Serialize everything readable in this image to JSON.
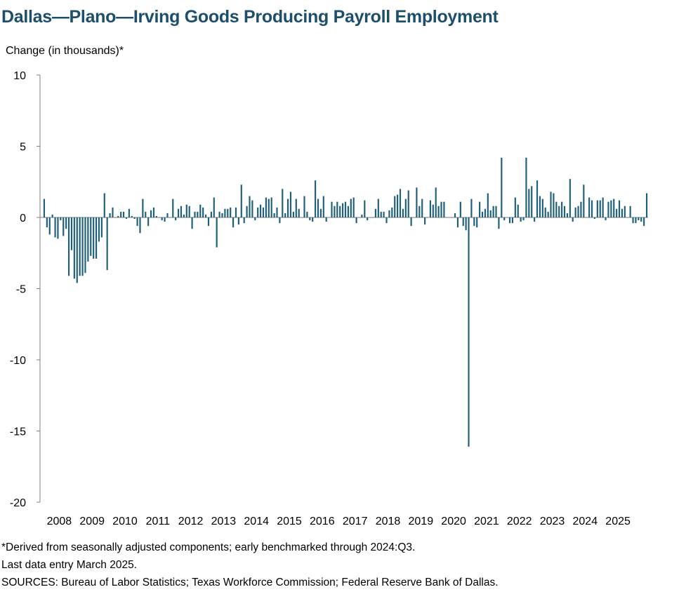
{
  "title": "Dallas—Plano—Irving Goods Producing Payroll Employment",
  "chart_data": {
    "type": "bar",
    "title": "Dallas—Plano—Irving Goods Producing Payroll Employment",
    "ylabel": "Change (in thousands)*",
    "xlabel": "",
    "ylim": [
      -20,
      10
    ],
    "yticks": [
      10,
      5,
      0,
      -5,
      -10,
      -15,
      -20
    ],
    "xtick_labels": [
      "2008",
      "2009",
      "2010",
      "2011",
      "2012",
      "2013",
      "2014",
      "2015",
      "2016",
      "2017",
      "2018",
      "2019",
      "2020",
      "2021",
      "2022",
      "2023",
      "2024",
      "2025"
    ],
    "frequency": "monthly",
    "start": "2008-01",
    "end": "2025-03",
    "bar_color": "#1d5f7a",
    "grid": false,
    "legend": "none",
    "series": [
      {
        "values": [
          1.3,
          -0.7,
          -1.2,
          0.2,
          -1.4,
          -1.5,
          -0.2,
          -1.3,
          -0.8,
          -4.1,
          -2.3,
          -4.3,
          -4.6,
          -4.1,
          -4.1,
          -3.9,
          -3.1,
          -2.7,
          -2.9,
          -2.9,
          -1.7,
          -1.4,
          1.7,
          -3.7,
          0.3,
          0.7,
          0.0,
          0.1,
          0.4,
          0.4,
          -0.1,
          0.6,
          0.1,
          -0.1,
          -0.6,
          -1.1,
          1.3,
          0.4,
          -0.6,
          0.5,
          0.7,
          0.1,
          0.0,
          -0.2,
          -0.3,
          0.3,
          0.0,
          1.3,
          -0.2,
          0.6,
          0.8,
          0.2,
          0.9,
          0.8,
          -0.8,
          0.4,
          0.4,
          0.9,
          0.7,
          0.2,
          -0.6,
          0.4,
          1.4,
          -2.1,
          0.4,
          0.3,
          0.6,
          0.6,
          0.7,
          -0.7,
          0.7,
          -0.5,
          2.3,
          -0.4,
          0.8,
          1.5,
          1.2,
          -0.2,
          0.7,
          0.9,
          0.7,
          1.4,
          1.3,
          1.4,
          0.3,
          0.7,
          -0.4,
          2.0,
          0.3,
          1.3,
          1.8,
          0.4,
          1.3,
          0.6,
          0.0,
          1.5,
          0.4,
          -0.2,
          -0.3,
          2.6,
          1.3,
          0.6,
          1.5,
          -0.3,
          0.0,
          1.1,
          0.8,
          1.1,
          0.8,
          1.0,
          1.1,
          0.8,
          1.3,
          1.4,
          -0.4,
          0.0,
          0.2,
          1.2,
          -0.2,
          0.0,
          0.0,
          0.6,
          1.3,
          0.4,
          0.4,
          -0.4,
          0.5,
          0.7,
          1.5,
          1.6,
          2.0,
          0.6,
          1.3,
          1.9,
          -0.6,
          0.0,
          2.1,
          0.8,
          1.3,
          -0.5,
          0.0,
          1.2,
          0.9,
          2.1,
          0.8,
          1.1,
          1.1,
          0.0,
          0.0,
          0.0,
          0.3,
          -0.7,
          1.1,
          -0.6,
          -0.9,
          -16.1,
          1.3,
          -0.6,
          -0.7,
          1.1,
          0.4,
          0.6,
          1.7,
          0.5,
          0.8,
          0.8,
          -0.8,
          4.2,
          -0.2,
          0.0,
          -0.4,
          -0.4,
          1.4,
          0.9,
          -0.3,
          -0.2,
          4.2,
          2.0,
          2.2,
          -0.3,
          2.6,
          1.5,
          1.3,
          0.7,
          0.4,
          1.8,
          1.7,
          1.1,
          0.8,
          1.1,
          0.8,
          0.3,
          2.7,
          -0.3,
          0.7,
          0.8,
          1.1,
          2.3,
          0.0,
          1.4,
          1.2,
          -0.1,
          1.2,
          1.2,
          1.4,
          -0.2,
          1.1,
          1.2,
          1.3,
          0.6,
          1.2,
          0.6,
          0.8,
          0.0,
          0.8,
          -0.4,
          -0.4,
          -0.2,
          -0.3,
          -0.6,
          1.7
        ]
      }
    ]
  },
  "notes": [
    "*Derived from seasonally adjusted components; early benchmarked through 2024:Q3.",
    "Last data entry March 2025.",
    "SOURCES: Bureau of Labor Statistics; Texas Workforce Commission; Federal Reserve Bank of Dallas."
  ]
}
